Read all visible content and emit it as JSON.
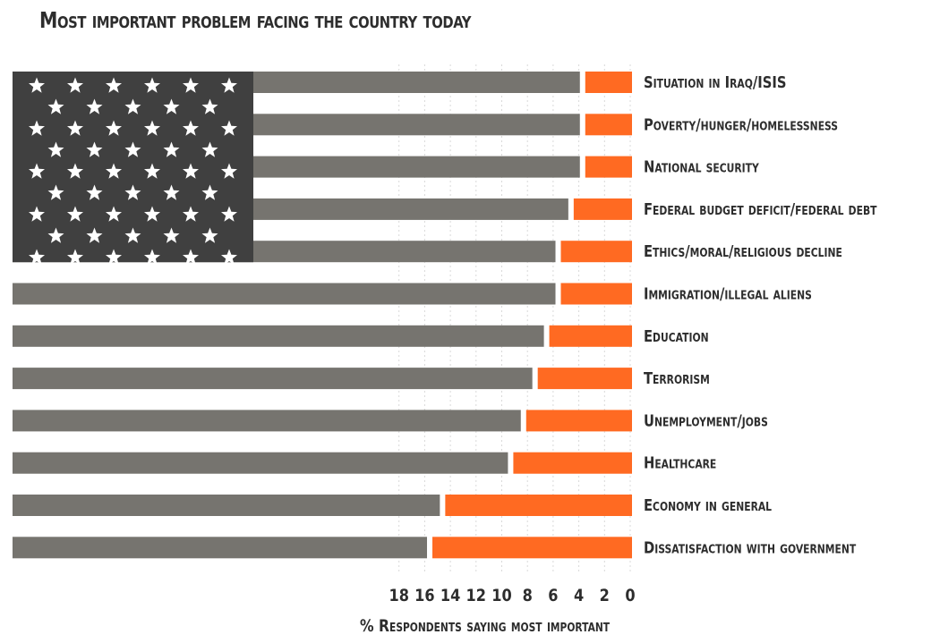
{
  "chart_data": {
    "type": "bar",
    "orientation": "horizontal",
    "x_direction": "reversed",
    "title": "Most important problem facing the country today",
    "xlabel": "% Respondents saying most important",
    "xlim": [
      0,
      18
    ],
    "xticks": [
      18,
      16,
      14,
      12,
      10,
      8,
      6,
      4,
      2,
      0
    ],
    "grid": true,
    "bar_color": "#ff6a22",
    "stripe_color": "#76746f",
    "canton_color": "#404040",
    "categories": [
      "Situation in Iraq/ISIS",
      "Poverty/hunger/homelessness",
      "National security",
      "Federal budget deficit/federal debt",
      "Ethics/moral/religious decline",
      "Immigration/illegal aliens",
      "Education",
      "Terrorism",
      "Unemployment/jobs",
      "Healthcare",
      "Economy in general",
      "Dissatisfaction with government"
    ],
    "values": [
      3.5,
      3.5,
      3.5,
      4.4,
      5.4,
      5.4,
      6.3,
      7.2,
      8.1,
      9.1,
      14.4,
      15.4
    ]
  }
}
